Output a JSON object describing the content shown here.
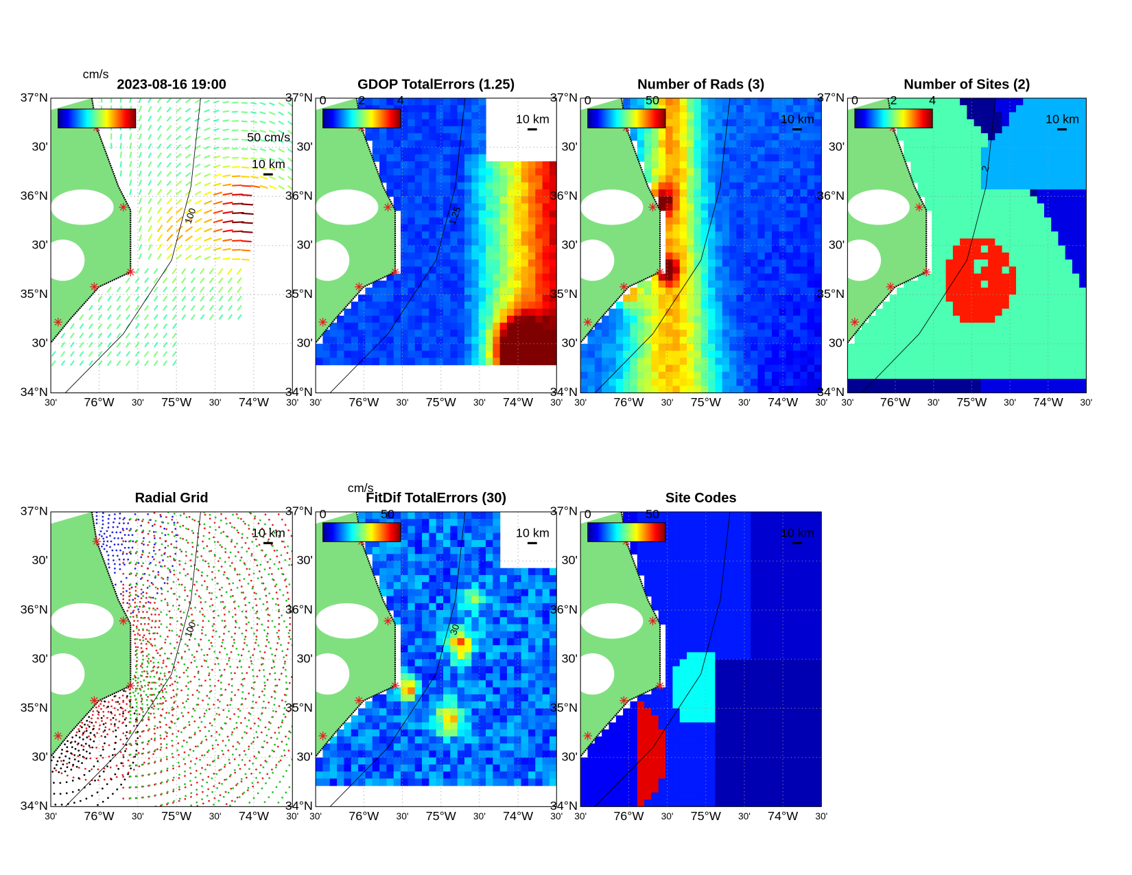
{
  "panels": [
    {
      "title": "2023-08-16 19:00",
      "colorbar_label": "cm/s",
      "scale": "10 km",
      "reference": "50 cm/s",
      "contour": "100"
    },
    {
      "title": "GDOP TotalErrors (1.25)",
      "colorbar_ticks": [
        0,
        2,
        4
      ],
      "clim": [
        0,
        4
      ],
      "scale": "10 km",
      "contour": "1.25"
    },
    {
      "title": "Number of Rads (3)",
      "colorbar_ticks": [
        0,
        50
      ],
      "clim": [
        0,
        60
      ],
      "scale": "10 km"
    },
    {
      "title": "Number of Sites (2)",
      "colorbar_ticks": [
        0,
        2,
        4
      ],
      "clim": [
        0,
        4
      ],
      "scale": "10 km",
      "contour": "2"
    },
    {
      "title": "Radial Grid",
      "scale": "10 km",
      "contour": "100"
    },
    {
      "title": "FitDif TotalErrors (30)",
      "colorbar_label": "cm/s",
      "colorbar_ticks": [
        0,
        50
      ],
      "clim": [
        0,
        60
      ],
      "scale": "10 km",
      "contour": "30"
    },
    {
      "title": "Site Codes",
      "colorbar_ticks": [
        0,
        50
      ],
      "clim": [
        0,
        60
      ],
      "scale": "10 km"
    }
  ],
  "lat_labels": [
    "37°N",
    "30'",
    "36°N",
    "30'",
    "35°N",
    "30'",
    "34°N"
  ],
  "lon_labels": [
    "30'",
    "76°W",
    "30'",
    "75°W",
    "30'",
    "74°W",
    "30'"
  ]
}
